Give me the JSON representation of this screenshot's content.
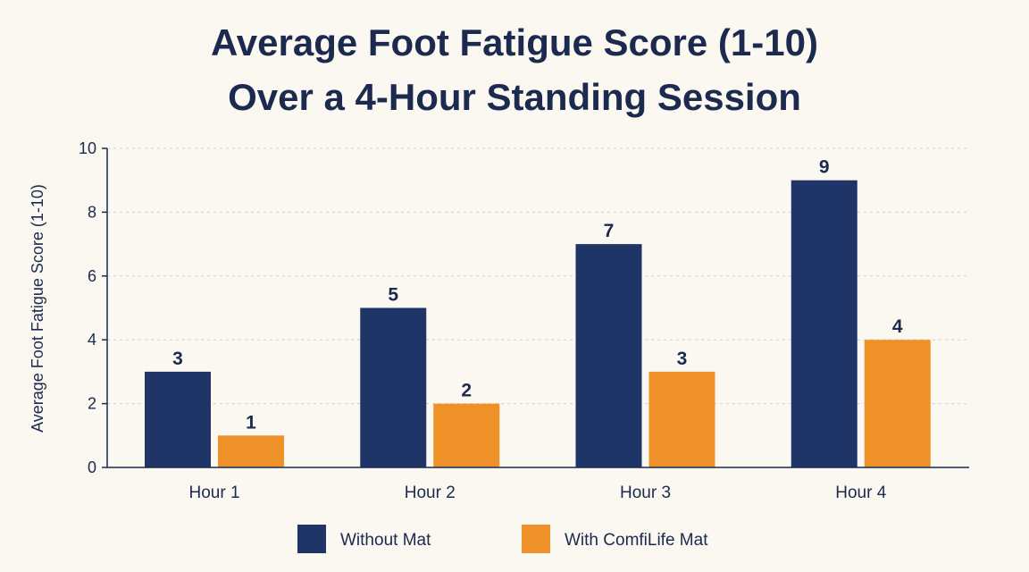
{
  "chart_data": {
    "type": "bar",
    "title": [
      "Average Foot Fatigue Score (1-10)",
      "Over a 4-Hour Standing Session"
    ],
    "xlabel": "",
    "ylabel": "Average Foot Fatigue Score (1-10)",
    "categories": [
      "Hour 1",
      "Hour 2",
      "Hour 3",
      "Hour 4"
    ],
    "series": [
      {
        "name": "Without Mat",
        "values": [
          3,
          5,
          7,
          9
        ],
        "color": "#1f3567"
      },
      {
        "name": "With ComfiLife Mat",
        "values": [
          1,
          2,
          3,
          4
        ],
        "color": "#ee9128"
      }
    ],
    "ylim": [
      0,
      10
    ],
    "yticks": [
      0,
      2,
      4,
      6,
      8,
      10
    ],
    "grid": true,
    "legend": "bottom-center",
    "data_labels": true
  }
}
